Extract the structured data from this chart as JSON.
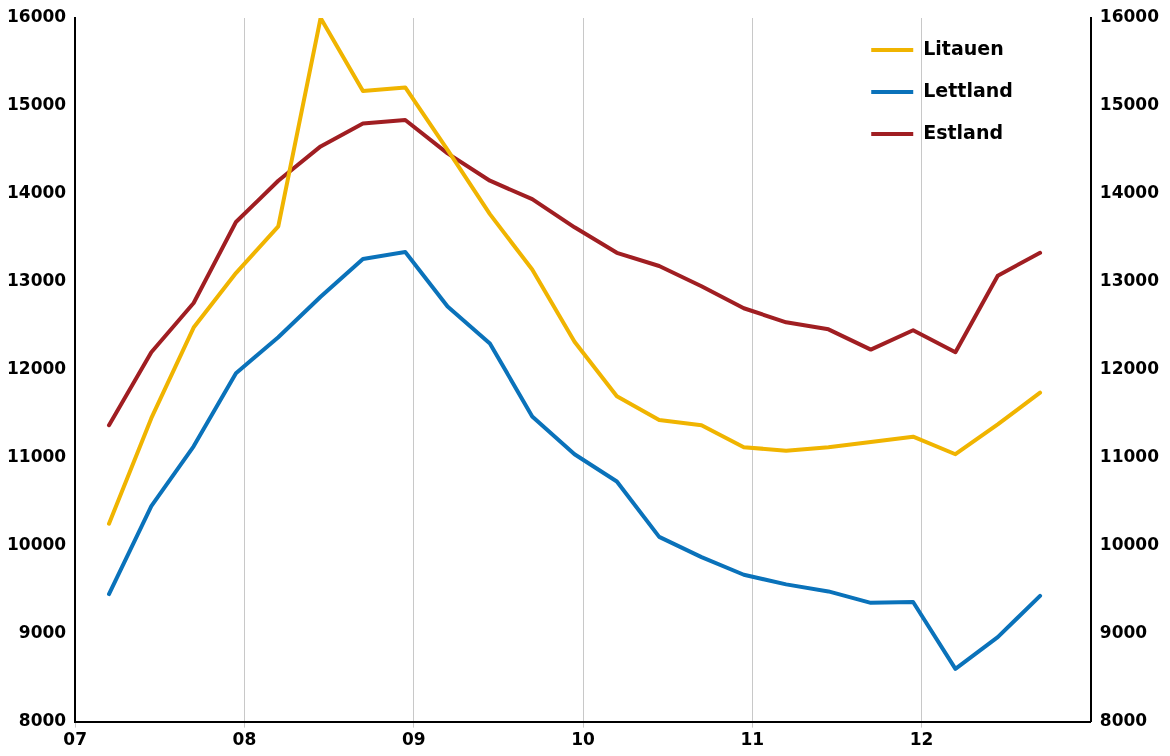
{
  "chart_data": {
    "type": "line",
    "x": [
      2007.2,
      2007.45,
      2007.7,
      2007.95,
      2008.2,
      2008.45,
      2008.7,
      2008.95,
      2009.2,
      2009.45,
      2009.7,
      2009.95,
      2010.2,
      2010.45,
      2010.7,
      2010.95,
      2011.2,
      2011.45,
      2011.7,
      2011.95,
      2012.2,
      2012.45,
      2012.7
    ],
    "series": [
      {
        "name": "Litauen",
        "color": "#f0b400",
        "values": [
          10250,
          11450,
          12480,
          13100,
          13630,
          16000,
          15170,
          15210,
          14500,
          13770,
          13140,
          12320,
          11700,
          11430,
          11370,
          11120,
          11080,
          11120,
          11180,
          11240,
          11040,
          11380,
          11740
        ]
      },
      {
        "name": "Lettland",
        "color": "#0a72ba",
        "values": [
          9450,
          10450,
          11130,
          11960,
          12370,
          12830,
          13260,
          13340,
          12720,
          12300,
          11470,
          11040,
          10730,
          10100,
          9870,
          9670,
          9560,
          9480,
          9350,
          9360,
          8600,
          8960,
          9430
        ]
      },
      {
        "name": "Estland",
        "color": "#a01e22",
        "values": [
          11370,
          12200,
          12760,
          13680,
          14150,
          14540,
          14800,
          14840,
          14460,
          14150,
          13940,
          13620,
          13330,
          13180,
          12950,
          12700,
          12540,
          12460,
          12230,
          12450,
          12200,
          13070,
          13330
        ]
      }
    ],
    "xlim": [
      2007,
      2013
    ],
    "xticks": [
      {
        "value": 2007,
        "label": "07"
      },
      {
        "value": 2008,
        "label": "08"
      },
      {
        "value": 2009,
        "label": "09"
      },
      {
        "value": 2010,
        "label": "10"
      },
      {
        "value": 2011,
        "label": "11"
      },
      {
        "value": 2012,
        "label": "12"
      }
    ],
    "ylim": [
      8000,
      16000
    ],
    "yticks": [
      8000,
      9000,
      10000,
      11000,
      12000,
      13000,
      14000,
      15000,
      16000
    ],
    "y2lim": [
      8000,
      16000
    ],
    "y2ticks": [
      8000,
      9000,
      10000,
      11000,
      12000,
      13000,
      14000,
      15000,
      16000
    ],
    "grid": "x",
    "legend": "top right",
    "marker": "none",
    "line_style": "solid"
  }
}
